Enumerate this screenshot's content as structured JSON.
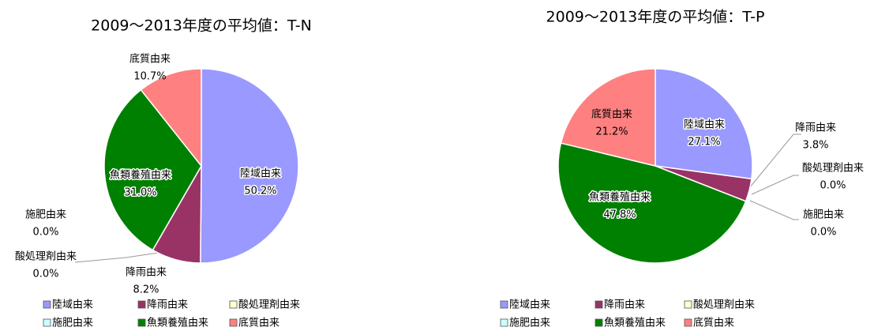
{
  "chart_data": [
    {
      "type": "pie",
      "title": "2009～2013年度の平均値：T-N",
      "categories": [
        "陸域由来",
        "降雨由来",
        "酸処理剤由来",
        "施肥由来",
        "魚類養殖由来",
        "底質由来"
      ],
      "values": [
        50.2,
        8.2,
        0.0,
        0.0,
        31.0,
        10.7
      ],
      "value_labels": [
        "50.2%",
        "8.2%",
        "0.0%",
        "0.0%",
        "31.0%",
        "10.7%"
      ],
      "colors": [
        "#9999ff",
        "#993366",
        "#ffffcc",
        "#ccffff",
        "#008000",
        "#ff8080"
      ]
    },
    {
      "type": "pie",
      "title": "2009～2013年度の平均値：T-P",
      "categories": [
        "陸域由来",
        "降雨由来",
        "酸処理剤由来",
        "施肥由来",
        "魚類養殖由来",
        "底質由来"
      ],
      "values": [
        27.1,
        3.8,
        0.0,
        0.0,
        47.8,
        21.2
      ],
      "value_labels": [
        "27.1%",
        "3.8%",
        "0.0%",
        "0.0%",
        "47.8%",
        "21.2%"
      ],
      "colors": [
        "#9999ff",
        "#993366",
        "#ffffcc",
        "#ccffff",
        "#008000",
        "#ff8080"
      ]
    }
  ]
}
